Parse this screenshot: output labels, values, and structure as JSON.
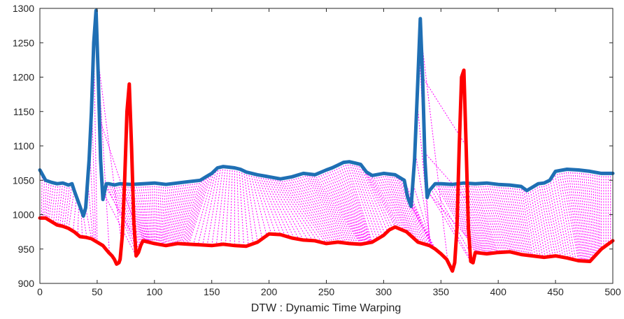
{
  "chart_data": {
    "type": "line",
    "title": "",
    "xlabel": "DTW : Dynamic Time Warping",
    "ylabel": "",
    "xlim": [
      0,
      500
    ],
    "ylim": [
      900,
      1300
    ],
    "xticks": [
      0,
      50,
      100,
      150,
      200,
      250,
      300,
      350,
      400,
      450,
      500
    ],
    "yticks": [
      900,
      950,
      1000,
      1050,
      1100,
      1150,
      1200,
      1250,
      1300
    ],
    "grid": false,
    "legend": "none",
    "colors": {
      "series_1": "#1f6fb4",
      "series_2": "#ff0000",
      "warping_path": "#ff00ff",
      "axes": "#262626"
    },
    "series": [
      {
        "color": "#1f6fb4",
        "x": [
          0,
          5,
          10,
          15,
          20,
          25,
          28,
          30,
          35,
          38,
          40,
          43,
          45,
          47,
          49,
          51,
          53,
          55,
          56,
          58,
          60,
          65,
          70,
          80,
          90,
          100,
          110,
          120,
          130,
          140,
          145,
          150,
          155,
          160,
          165,
          170,
          175,
          180,
          190,
          200,
          210,
          220,
          230,
          240,
          250,
          255,
          260,
          265,
          270,
          275,
          280,
          285,
          290,
          300,
          310,
          318,
          321,
          324,
          327,
          330,
          332,
          334,
          336,
          338,
          340,
          345,
          350,
          360,
          370,
          380,
          390,
          400,
          410,
          420,
          425,
          430,
          435,
          440,
          445,
          450,
          460,
          470,
          480,
          490,
          500
        ],
        "y": [
          1065,
          1050,
          1047,
          1045,
          1046,
          1043,
          1045,
          1035,
          1012,
          998,
          1010,
          1080,
          1150,
          1250,
          1297,
          1200,
          1080,
          1022,
          1030,
          1045,
          1045,
          1043,
          1045,
          1044,
          1045,
          1046,
          1044,
          1046,
          1048,
          1050,
          1055,
          1060,
          1068,
          1070,
          1069,
          1068,
          1066,
          1062,
          1058,
          1055,
          1052,
          1055,
          1060,
          1058,
          1065,
          1068,
          1072,
          1076,
          1077,
          1075,
          1073,
          1062,
          1057,
          1060,
          1058,
          1050,
          1025,
          1012,
          1080,
          1200,
          1285,
          1200,
          1080,
          1025,
          1035,
          1045,
          1045,
          1044,
          1046,
          1045,
          1046,
          1044,
          1043,
          1041,
          1035,
          1040,
          1045,
          1046,
          1050,
          1063,
          1066,
          1065,
          1063,
          1060,
          1060
        ]
      },
      {
        "color": "#ff0000",
        "x": [
          0,
          5,
          10,
          15,
          20,
          25,
          30,
          35,
          40,
          45,
          50,
          55,
          60,
          63,
          65,
          67,
          69,
          70,
          72,
          74,
          76,
          78,
          80,
          82,
          84,
          86,
          88,
          90,
          100,
          110,
          120,
          130,
          140,
          150,
          160,
          170,
          180,
          190,
          200,
          210,
          220,
          230,
          240,
          250,
          260,
          270,
          280,
          290,
          300,
          305,
          310,
          320,
          330,
          340,
          345,
          350,
          355,
          358,
          360,
          362,
          364,
          366,
          368,
          370,
          372,
          374,
          376,
          378,
          380,
          390,
          400,
          410,
          420,
          430,
          440,
          450,
          460,
          470,
          480,
          490,
          500
        ],
        "y": [
          995,
          995,
          990,
          985,
          983,
          980,
          975,
          968,
          967,
          965,
          960,
          955,
          945,
          940,
          935,
          928,
          930,
          935,
          970,
          1050,
          1150,
          1190,
          1100,
          990,
          940,
          945,
          955,
          962,
          958,
          955,
          958,
          957,
          956,
          955,
          957,
          955,
          954,
          960,
          972,
          971,
          966,
          963,
          962,
          958,
          960,
          958,
          957,
          960,
          970,
          978,
          982,
          975,
          960,
          955,
          950,
          943,
          935,
          925,
          918,
          930,
          980,
          1100,
          1200,
          1210,
          1100,
          980,
          932,
          930,
          945,
          943,
          945,
          946,
          942,
          940,
          938,
          940,
          937,
          933,
          932,
          950,
          962
        ]
      }
    ]
  }
}
